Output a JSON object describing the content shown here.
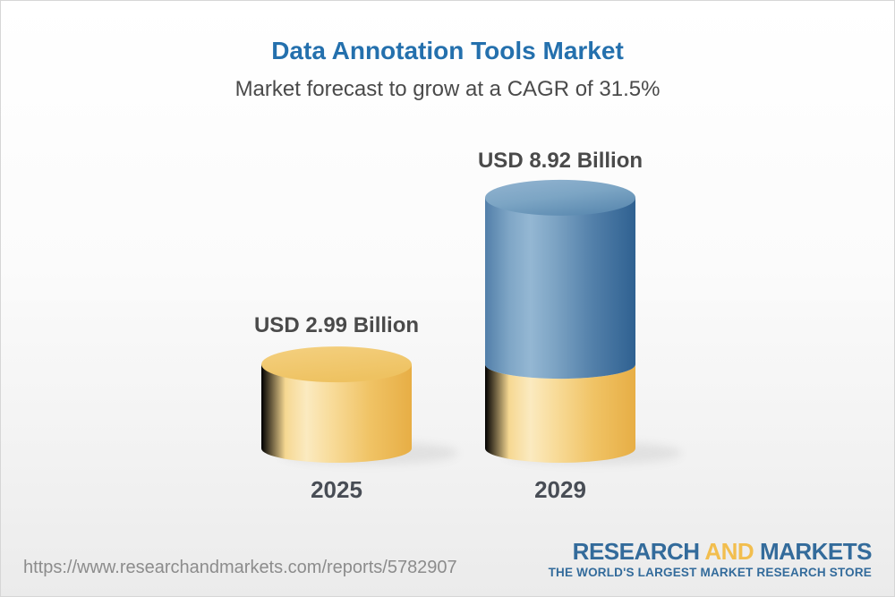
{
  "header": {
    "title": "Data Annotation Tools Market",
    "subtitle": "Market forecast to grow at a CAGR of 31.5%"
  },
  "chart_data": {
    "type": "bar",
    "variant": "3d-cylinder",
    "title": "Data Annotation Tools Market",
    "subtitle": "Market forecast to grow at a CAGR of 31.5%",
    "unit": "USD Billion",
    "cagr_percent": 31.5,
    "categories": [
      "2025",
      "2029"
    ],
    "values": [
      2.99,
      8.92
    ],
    "bars": [
      {
        "category": "2025",
        "value": 2.99,
        "label": "USD 2.99 Billion",
        "segments": [
          {
            "color": "yellow",
            "value": 2.99
          }
        ]
      },
      {
        "category": "2029",
        "value": 8.92,
        "label": "USD 8.92 Billion",
        "segments": [
          {
            "color": "yellow",
            "value": 2.99
          },
          {
            "color": "blue",
            "value": 5.93
          }
        ]
      }
    ],
    "colors": {
      "yellow_bar": "#f2c76e",
      "blue_bar": "#5e8bb1",
      "title_blue": "#2470ad",
      "label_gray": "#4a4a4a"
    },
    "legend": null,
    "grid": false
  },
  "footer": {
    "url": "https://www.researchandmarkets.com/reports/5782907",
    "logo": {
      "word1": "RESEARCH",
      "word2": "AND",
      "word3": "MARKETS",
      "tagline": "THE WORLD'S LARGEST MARKET RESEARCH STORE",
      "blue": "#336b9b",
      "gold": "#f2be4e"
    }
  }
}
